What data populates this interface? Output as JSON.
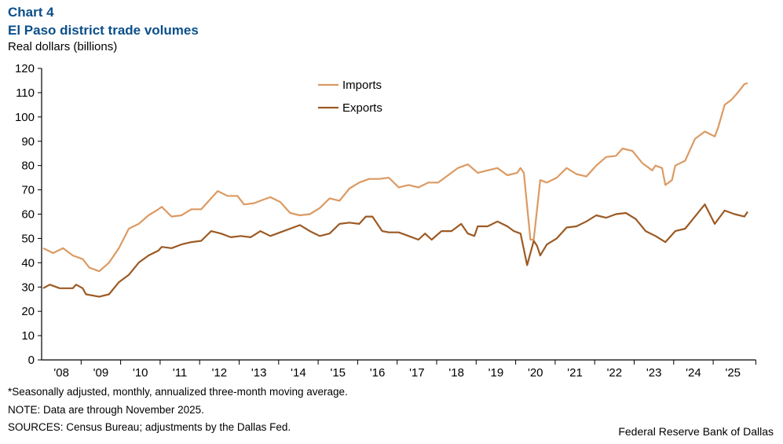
{
  "header": {
    "chart_number": "Chart 4",
    "title": "El Paso district trade volumes",
    "unit": "Real dollars (billions)"
  },
  "footer": {
    "footnote": "*Seasonally adjusted, monthly, annualized three-month moving average.",
    "note": "NOTE: Data are through November 2025.",
    "sources": "SOURCES: Census Bureau; adjustments by the Dallas Fed.",
    "credit": "Federal Reserve Bank of Dallas"
  },
  "chart_data": {
    "type": "line",
    "title": "El Paso district trade volumes",
    "ylabel": "Real dollars (billions)",
    "ylim": [
      0,
      120
    ],
    "yticks": [
      0,
      10,
      20,
      30,
      40,
      50,
      60,
      70,
      80,
      90,
      100,
      110,
      120
    ],
    "xticks": [
      "'08",
      "'09",
      "'10",
      "'11",
      "'12",
      "'13",
      "'14",
      "'15",
      "'16",
      "'17",
      "'18",
      "'19",
      "'20",
      "'21",
      "'22",
      "'23",
      "'24",
      "'25"
    ],
    "grid": false,
    "legend": "top-center",
    "series": [
      {
        "name": "Imports",
        "color": "#dc9a63",
        "points": [
          [
            "2008-01",
            46
          ],
          [
            "2008-04",
            44
          ],
          [
            "2008-07",
            46
          ],
          [
            "2008-10",
            43
          ],
          [
            "2009-01",
            41.5
          ],
          [
            "2009-03",
            38
          ],
          [
            "2009-06",
            36.5
          ],
          [
            "2009-09",
            40
          ],
          [
            "2009-12",
            46
          ],
          [
            "2010-03",
            54
          ],
          [
            "2010-06",
            56
          ],
          [
            "2010-09",
            59.5
          ],
          [
            "2010-12",
            62
          ],
          [
            "2011-01",
            63
          ],
          [
            "2011-04",
            59
          ],
          [
            "2011-07",
            59.5
          ],
          [
            "2011-10",
            62
          ],
          [
            "2012-01",
            62
          ],
          [
            "2012-04",
            66.5
          ],
          [
            "2012-06",
            69.5
          ],
          [
            "2012-09",
            67.5
          ],
          [
            "2012-12",
            67.5
          ],
          [
            "2013-02",
            64
          ],
          [
            "2013-05",
            64.5
          ],
          [
            "2013-08",
            66
          ],
          [
            "2013-10",
            67
          ],
          [
            "2014-01",
            65
          ],
          [
            "2014-04",
            60.5
          ],
          [
            "2014-07",
            59.5
          ],
          [
            "2014-10",
            60
          ],
          [
            "2015-01",
            62.5
          ],
          [
            "2015-04",
            66.5
          ],
          [
            "2015-07",
            65.5
          ],
          [
            "2015-10",
            70.5
          ],
          [
            "2016-01",
            73
          ],
          [
            "2016-04",
            74.5
          ],
          [
            "2016-07",
            74.5
          ],
          [
            "2016-10",
            75
          ],
          [
            "2017-01",
            71
          ],
          [
            "2017-04",
            72
          ],
          [
            "2017-07",
            71
          ],
          [
            "2017-10",
            73
          ],
          [
            "2018-01",
            73
          ],
          [
            "2018-04",
            76
          ],
          [
            "2018-07",
            79
          ],
          [
            "2018-10",
            80.5
          ],
          [
            "2019-01",
            77
          ],
          [
            "2019-04",
            78
          ],
          [
            "2019-07",
            79
          ],
          [
            "2019-10",
            76
          ],
          [
            "2020-01",
            77
          ],
          [
            "2020-02",
            79
          ],
          [
            "2020-03",
            77
          ],
          [
            "2020-05",
            49.5
          ],
          [
            "2020-06",
            49.5
          ],
          [
            "2020-08",
            74
          ],
          [
            "2020-10",
            73
          ],
          [
            "2021-01",
            75
          ],
          [
            "2021-04",
            79
          ],
          [
            "2021-07",
            76.5
          ],
          [
            "2021-10",
            75.5
          ],
          [
            "2022-01",
            80
          ],
          [
            "2022-04",
            83.5
          ],
          [
            "2022-07",
            84
          ],
          [
            "2022-09",
            87
          ],
          [
            "2022-12",
            86
          ],
          [
            "2023-03",
            81
          ],
          [
            "2023-06",
            78
          ],
          [
            "2023-07",
            80
          ],
          [
            "2023-09",
            79
          ],
          [
            "2023-10",
            72
          ],
          [
            "2023-12",
            74
          ],
          [
            "2024-01",
            80
          ],
          [
            "2024-04",
            82
          ],
          [
            "2024-07",
            91
          ],
          [
            "2024-10",
            94
          ],
          [
            "2025-01",
            92
          ],
          [
            "2025-02",
            95.5
          ],
          [
            "2025-04",
            105
          ],
          [
            "2025-06",
            107
          ],
          [
            "2025-08",
            110
          ],
          [
            "2025-10",
            113.5
          ],
          [
            "2025-11",
            114
          ]
        ]
      },
      {
        "name": "Exports",
        "color": "#9c5a24",
        "points": [
          [
            "2008-01",
            29.5
          ],
          [
            "2008-03",
            31
          ],
          [
            "2008-06",
            29.5
          ],
          [
            "2008-10",
            29.5
          ],
          [
            "2008-11",
            31
          ],
          [
            "2009-01",
            29.5
          ],
          [
            "2009-02",
            27
          ],
          [
            "2009-06",
            26
          ],
          [
            "2009-09",
            27
          ],
          [
            "2009-12",
            32
          ],
          [
            "2010-03",
            35
          ],
          [
            "2010-06",
            40
          ],
          [
            "2010-09",
            43
          ],
          [
            "2010-12",
            45
          ],
          [
            "2011-01",
            46.5
          ],
          [
            "2011-04",
            46
          ],
          [
            "2011-07",
            47.5
          ],
          [
            "2011-10",
            48.5
          ],
          [
            "2012-01",
            49
          ],
          [
            "2012-04",
            53
          ],
          [
            "2012-07",
            52
          ],
          [
            "2012-10",
            50.5
          ],
          [
            "2013-01",
            51
          ],
          [
            "2013-04",
            50.5
          ],
          [
            "2013-07",
            53
          ],
          [
            "2013-10",
            51
          ],
          [
            "2014-01",
            52.5
          ],
          [
            "2014-04",
            54
          ],
          [
            "2014-07",
            55.5
          ],
          [
            "2014-10",
            53
          ],
          [
            "2015-01",
            51
          ],
          [
            "2015-04",
            52
          ],
          [
            "2015-07",
            56
          ],
          [
            "2015-10",
            56.5
          ],
          [
            "2016-01",
            56
          ],
          [
            "2016-03",
            59
          ],
          [
            "2016-05",
            59
          ],
          [
            "2016-08",
            53
          ],
          [
            "2016-10",
            52.5
          ],
          [
            "2017-01",
            52.5
          ],
          [
            "2017-04",
            51
          ],
          [
            "2017-07",
            49.5
          ],
          [
            "2017-09",
            52
          ],
          [
            "2017-11",
            49.5
          ],
          [
            "2018-02",
            53
          ],
          [
            "2018-05",
            53
          ],
          [
            "2018-08",
            56
          ],
          [
            "2018-10",
            52
          ],
          [
            "2018-12",
            51
          ],
          [
            "2019-01",
            55
          ],
          [
            "2019-04",
            55
          ],
          [
            "2019-07",
            57
          ],
          [
            "2019-10",
            55
          ],
          [
            "2019-12",
            53
          ],
          [
            "2020-02",
            52
          ],
          [
            "2020-04",
            39
          ],
          [
            "2020-06",
            49
          ],
          [
            "2020-07",
            47
          ],
          [
            "2020-08",
            43
          ],
          [
            "2020-10",
            47.5
          ],
          [
            "2021-01",
            50
          ],
          [
            "2021-04",
            54.5
          ],
          [
            "2021-07",
            55
          ],
          [
            "2021-10",
            57
          ],
          [
            "2022-01",
            59.5
          ],
          [
            "2022-04",
            58.5
          ],
          [
            "2022-07",
            60
          ],
          [
            "2022-10",
            60.5
          ],
          [
            "2023-01",
            58
          ],
          [
            "2023-04",
            53
          ],
          [
            "2023-07",
            51
          ],
          [
            "2023-10",
            48.5
          ],
          [
            "2024-01",
            53
          ],
          [
            "2024-04",
            54
          ],
          [
            "2024-07",
            59
          ],
          [
            "2024-10",
            64
          ],
          [
            "2025-01",
            56
          ],
          [
            "2025-04",
            61.5
          ],
          [
            "2025-07",
            60
          ],
          [
            "2025-10",
            59
          ],
          [
            "2025-11",
            61
          ]
        ]
      }
    ]
  }
}
